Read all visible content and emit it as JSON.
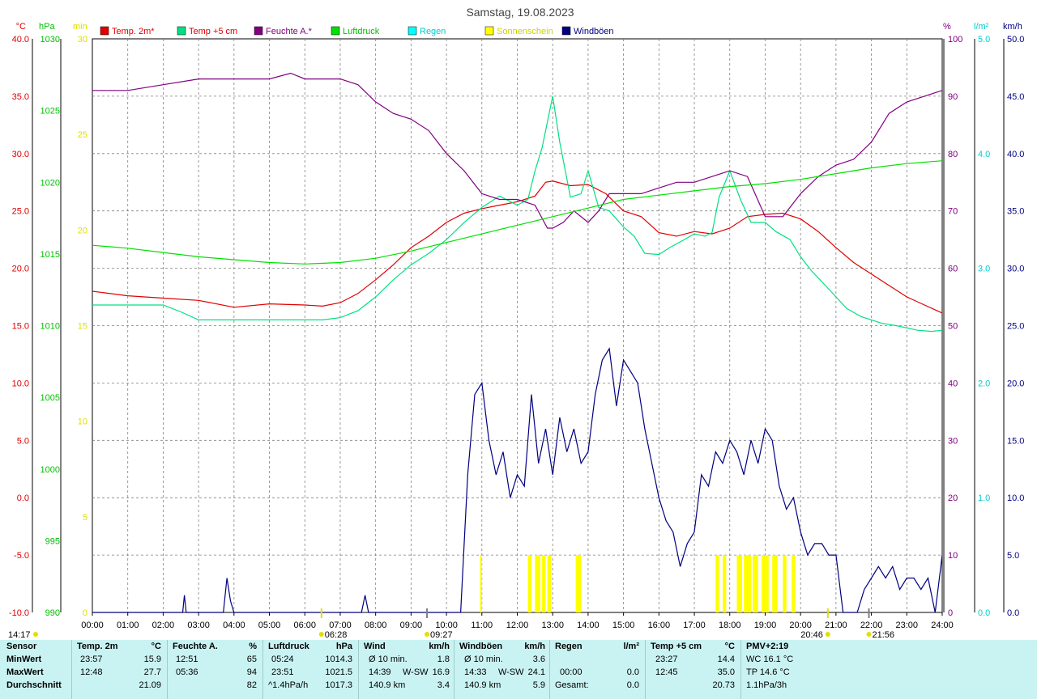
{
  "title": "Samstag, 19.08.2023",
  "legend": [
    {
      "label": "Temp. 2m*",
      "color": "#e00000",
      "text_color": "#e00000"
    },
    {
      "label": "Temp +5 cm",
      "color": "#00e080",
      "text_color": "#e00000"
    },
    {
      "label": "Feuchte A.*",
      "color": "#800080",
      "text_color": "#800080"
    },
    {
      "label": "Luftdruck",
      "color": "#00e000",
      "text_color": "#00c000"
    },
    {
      "label": "Regen",
      "color": "#00ffff",
      "text_color": "#00d0d0"
    },
    {
      "label": "Sonnenschein",
      "color": "#ffff00",
      "text_color": "#d0d000"
    },
    {
      "label": "Windböen",
      "color": "#000080",
      "text_color": "#000080"
    }
  ],
  "axis_units": {
    "temp": "°C",
    "pressure": "hPa",
    "sun": "min",
    "humidity": "%",
    "rain": "l/m²",
    "wind": "km/h"
  },
  "chart_data": {
    "type": "line",
    "x_ticks": [
      "00:00",
      "01:00",
      "02:00",
      "03:00",
      "04:00",
      "05:00",
      "06:00",
      "07:00",
      "08:00",
      "09:00",
      "10:00",
      "11:00",
      "12:00",
      "13:00",
      "14:00",
      "15:00",
      "16:00",
      "17:00",
      "18:00",
      "19:00",
      "20:00",
      "21:00",
      "22:00",
      "23:00",
      "24:00"
    ],
    "axes": {
      "temp": {
        "ticks": [
          "40.0",
          "35.0",
          "30.0",
          "25.0",
          "20.0",
          "15.0",
          "10.0",
          "5.0",
          "0.0",
          "-5.0",
          "-10.0"
        ],
        "range": [
          -10,
          40
        ],
        "color": "#e00000"
      },
      "pressure": {
        "ticks": [
          "1030",
          "1025",
          "1020",
          "1015",
          "1010",
          "1005",
          "1000",
          "995",
          "990"
        ],
        "range": [
          990,
          1030
        ],
        "color": "#00c000"
      },
      "sun": {
        "ticks": [
          "30",
          "25",
          "20",
          "15",
          "10",
          "5",
          "0"
        ],
        "range": [
          0,
          30
        ],
        "color": "#e0e000"
      },
      "humidity": {
        "ticks": [
          "100",
          "90",
          "80",
          "70",
          "60",
          "50",
          "40",
          "30",
          "20",
          "10",
          "0"
        ],
        "range": [
          0,
          100
        ],
        "color": "#800080"
      },
      "rain": {
        "ticks": [
          "5.0",
          "4.0",
          "3.0",
          "2.0",
          "1.0",
          "0.0"
        ],
        "range": [
          0,
          5
        ],
        "color": "#00d0d0"
      },
      "wind": {
        "ticks": [
          "50.0",
          "45.0",
          "40.0",
          "35.0",
          "30.0",
          "25.0",
          "20.0",
          "15.0",
          "10.0",
          "5.0",
          "0.0"
        ],
        "range": [
          0,
          50
        ],
        "color": "#000080"
      }
    },
    "series": [
      {
        "name": "Temp. 2m*",
        "axis": "temp",
        "color": "#e00000",
        "x": [
          0,
          1,
          2,
          3,
          4,
          5,
          6,
          6.5,
          7,
          7.5,
          8,
          8.5,
          9,
          9.5,
          10,
          10.5,
          11,
          11.5,
          12,
          12.5,
          12.8,
          13,
          13.5,
          14,
          14.5,
          15,
          15.5,
          16,
          16.5,
          17,
          17.5,
          18,
          18.5,
          19,
          19.5,
          20,
          20.5,
          21,
          21.5,
          22,
          22.5,
          23,
          23.5,
          24
        ],
        "y": [
          18,
          17.6,
          17.4,
          17.2,
          16.6,
          16.9,
          16.8,
          16.7,
          17,
          17.8,
          19,
          20.3,
          21.8,
          22.8,
          24,
          24.8,
          25.2,
          25.5,
          25.8,
          26.3,
          27.5,
          27.6,
          27.2,
          27.3,
          26.5,
          25,
          24.5,
          23.1,
          22.8,
          23.2,
          23,
          23.5,
          24.5,
          24.7,
          24.8,
          24.3,
          23.2,
          21.8,
          20.5,
          19.5,
          18.5,
          17.5,
          16.8,
          16.1
        ]
      },
      {
        "name": "Temp +5 cm",
        "axis": "temp",
        "color": "#00e080",
        "x": [
          0,
          1,
          2,
          2.5,
          3,
          4,
          5,
          6,
          6.5,
          7,
          7.5,
          8,
          8.5,
          9,
          9.5,
          10,
          10.5,
          11,
          11.5,
          12,
          12.3,
          12.5,
          12.7,
          13,
          13.2,
          13.5,
          13.8,
          14,
          14.3,
          14.6,
          15,
          15.3,
          15.6,
          16,
          16.3,
          16.6,
          17,
          17.3,
          17.5,
          17.7,
          18,
          18.3,
          18.6,
          19,
          19.3,
          19.7,
          20,
          20.3,
          20.7,
          21,
          21.3,
          21.7,
          22,
          22.3,
          22.7,
          23,
          23.3,
          23.7,
          24
        ],
        "y": [
          16.8,
          16.8,
          16.8,
          16.2,
          15.5,
          15.5,
          15.5,
          15.5,
          15.5,
          15.7,
          16.3,
          17.5,
          19,
          20.3,
          21.3,
          22.5,
          24,
          25.3,
          26.3,
          25.5,
          26,
          28.5,
          30.5,
          35,
          31,
          26.2,
          26.5,
          28.5,
          25.3,
          25,
          23.6,
          22.8,
          21.3,
          21.2,
          21.8,
          22.3,
          23,
          22.8,
          23.1,
          26.2,
          28.5,
          26,
          24,
          24,
          23.2,
          22.5,
          21,
          19.8,
          18.5,
          17.5,
          16.5,
          15.8,
          15.5,
          15.2,
          15,
          14.8,
          14.6,
          14.5,
          14.6
        ]
      },
      {
        "name": "Feuchte A.*",
        "axis": "humidity",
        "color": "#800080",
        "x": [
          0,
          1,
          2,
          3,
          4,
          5,
          5.6,
          6,
          6.5,
          7,
          7.5,
          8,
          8.5,
          9,
          9.5,
          10,
          10.5,
          11,
          11.5,
          12,
          12.5,
          12.85,
          13,
          13.3,
          13.6,
          14,
          14.3,
          14.6,
          15,
          15.5,
          16,
          16.5,
          17,
          17.5,
          18,
          18.5,
          19,
          19.5,
          20,
          20.5,
          21,
          21.5,
          22,
          22.5,
          23,
          23.5,
          24
        ],
        "y": [
          91,
          91,
          92,
          93,
          93,
          93,
          94,
          93,
          93,
          93,
          92,
          89,
          87,
          86,
          84,
          80,
          77,
          73,
          72,
          72,
          71,
          67,
          67,
          68,
          70,
          68,
          70,
          73,
          73,
          73,
          74,
          75,
          75,
          76,
          77,
          76,
          69,
          69,
          73,
          76,
          78,
          79,
          82,
          87,
          89,
          90,
          91
        ]
      },
      {
        "name": "Luftdruck",
        "axis": "pressure",
        "color": "#00e000",
        "x": [
          0,
          1,
          2,
          3,
          4,
          5,
          6,
          7,
          8,
          9,
          10,
          11,
          12,
          13,
          14,
          15,
          16,
          17,
          18,
          19,
          20,
          21,
          22,
          23,
          24
        ],
        "y": [
          1015.6,
          1015.4,
          1015.1,
          1014.8,
          1014.6,
          1014.4,
          1014.3,
          1014.4,
          1014.7,
          1015.2,
          1015.8,
          1016.4,
          1017,
          1017.6,
          1018.2,
          1018.8,
          1019.1,
          1019.4,
          1019.7,
          1019.9,
          1020.2,
          1020.6,
          1021,
          1021.3,
          1021.5
        ]
      },
      {
        "name": "Windböen",
        "axis": "wind",
        "color": "#000080",
        "x": [
          0,
          2.55,
          2.6,
          2.65,
          3,
          3.7,
          3.8,
          3.9,
          4,
          7.6,
          7.7,
          7.8,
          8,
          10.4,
          10.6,
          10.8,
          11,
          11.2,
          11.4,
          11.6,
          11.8,
          12,
          12.2,
          12.4,
          12.6,
          12.8,
          13,
          13.2,
          13.4,
          13.6,
          13.8,
          14,
          14.2,
          14.4,
          14.6,
          14.8,
          15,
          15.2,
          15.4,
          15.6,
          15.8,
          16,
          16.2,
          16.4,
          16.6,
          16.8,
          17,
          17.2,
          17.4,
          17.6,
          17.8,
          18,
          18.2,
          18.4,
          18.6,
          18.8,
          19,
          19.2,
          19.4,
          19.6,
          19.8,
          20,
          20.2,
          20.4,
          20.6,
          20.8,
          21,
          21.2,
          21.4,
          21.6,
          21.8,
          22,
          22.2,
          22.4,
          22.6,
          22.8,
          23,
          23.2,
          23.4,
          23.6,
          23.8,
          24
        ],
        "y": [
          0,
          0,
          1.5,
          0,
          0,
          0,
          3,
          1,
          0,
          0,
          1.5,
          0,
          0,
          0,
          12,
          19,
          20,
          15,
          12,
          14,
          10,
          12,
          11,
          19,
          13,
          16,
          12,
          17,
          14,
          16,
          13,
          14,
          19,
          22,
          23,
          18,
          22,
          21,
          20,
          16,
          13,
          10,
          8,
          7,
          4,
          6,
          7,
          12,
          11,
          14,
          13,
          15,
          14,
          12,
          15,
          13,
          16,
          15,
          11,
          9,
          10,
          7,
          5,
          6,
          6,
          5,
          5,
          0,
          0,
          0,
          2,
          3,
          4,
          3,
          4,
          2,
          3,
          3,
          2,
          3,
          0,
          5
        ]
      },
      {
        "name": "Sonnenschein",
        "axis": "sun",
        "color": "#ffff00",
        "bars": [
          [
            10.95,
            11.0
          ],
          [
            12.3,
            12.4
          ],
          [
            12.5,
            12.65
          ],
          [
            12.7,
            12.8
          ],
          [
            12.85,
            12.95
          ],
          [
            13.65,
            13.8
          ],
          [
            17.6,
            17.7
          ],
          [
            17.8,
            17.9
          ],
          [
            18.2,
            18.35
          ],
          [
            18.4,
            18.6
          ],
          [
            18.65,
            18.8
          ],
          [
            18.9,
            19.1
          ],
          [
            19.2,
            19.35
          ],
          [
            19.5,
            19.6
          ],
          [
            19.75,
            19.85
          ]
        ],
        "height": 3
      }
    ]
  },
  "markers": [
    {
      "label": "14:17",
      "x": -1,
      "icon": "sun"
    },
    {
      "label": "06:28",
      "x": 6.47,
      "icon": "sun"
    },
    {
      "label": "09:27",
      "x": 9.45,
      "icon": "moon"
    },
    {
      "label": "20:46",
      "x": 20.77,
      "icon": "sun"
    },
    {
      "label": "21:56",
      "x": 21.93,
      "icon": "moon"
    }
  ],
  "stats": {
    "sensor": {
      "head": "Sensor",
      "rows": [
        "MinWert",
        "MaxWert",
        "Durchschnitt"
      ]
    },
    "temp2m": {
      "head": "Temp. 2m",
      "unit": "°C",
      "rows": [
        [
          "23:57",
          "15.9"
        ],
        [
          "12:48",
          "27.7"
        ],
        [
          "",
          "21.09"
        ]
      ]
    },
    "feuchte": {
      "head": "Feuchte A.",
      "unit": "%",
      "rows": [
        [
          "12:51",
          "65"
        ],
        [
          "05:36",
          "94"
        ],
        [
          "",
          "82"
        ]
      ]
    },
    "luftdruck": {
      "head": "Luftdruck",
      "unit": "hPa",
      "rows": [
        [
          "05:24",
          "1014.3"
        ],
        [
          "23:51",
          "1021.5"
        ],
        [
          "^1.4hPa/h",
          "1017.3"
        ]
      ]
    },
    "wind": {
      "head": "Wind",
      "unit": "km/h",
      "rows": [
        [
          "Ø 10 min.",
          "",
          "1.8"
        ],
        [
          "14:39",
          "W-SW",
          "16.9"
        ],
        [
          "140.9 km",
          "",
          "3.4"
        ]
      ]
    },
    "windboeen": {
      "head": "Windböen",
      "unit": "km/h",
      "rows": [
        [
          "Ø 10 min.",
          "",
          "3.6"
        ],
        [
          "14:33",
          "W-SW",
          "24.1"
        ],
        [
          "140.9 km",
          "",
          "5.9"
        ]
      ]
    },
    "regen": {
      "head": "Regen",
      "unit": "l/m²",
      "rows": [
        [
          "",
          ""
        ],
        [
          "00:00",
          "0.0"
        ],
        [
          "Gesamt:",
          "0.0"
        ]
      ]
    },
    "temp5": {
      "head": "Temp +5 cm",
      "unit": "°C",
      "rows": [
        [
          "23:27",
          "14.4"
        ],
        [
          "12:45",
          "35.0"
        ],
        [
          "",
          "20.73"
        ]
      ]
    },
    "pmv": {
      "head": "PMV+2:19",
      "rows": [
        "WC 16.1 °C",
        "TP 14.6 °C",
        "1.1hPa/3h"
      ]
    }
  }
}
